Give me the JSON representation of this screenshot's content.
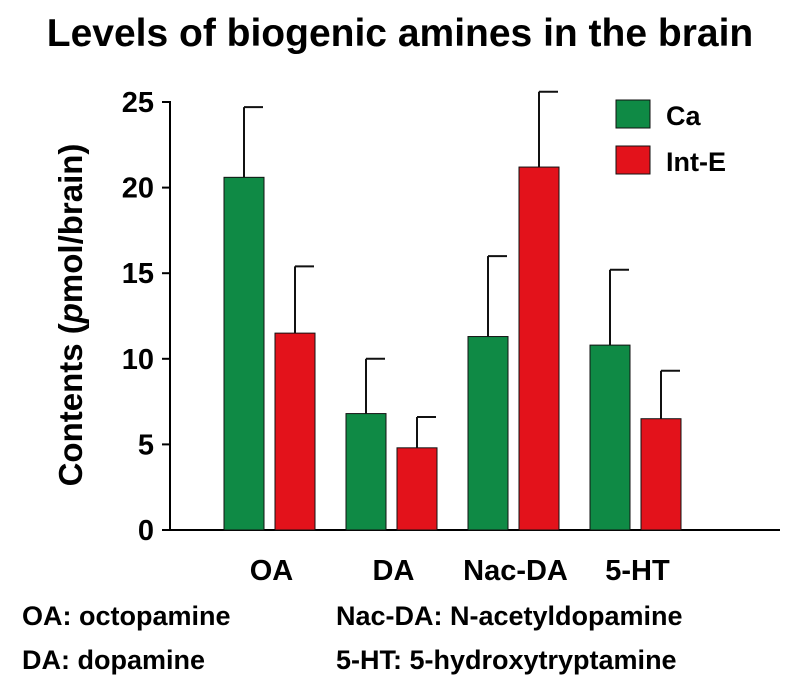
{
  "chart_data": {
    "type": "bar",
    "title": "Levels of biogenic amines in the brain",
    "ylabel_parts": [
      "Contents (",
      "p",
      "mol/brain)"
    ],
    "xlabel": "",
    "categories": [
      "OA",
      "DA",
      "Nac-DA",
      "5-HT"
    ],
    "ylim": [
      0,
      25
    ],
    "yticks": [
      0,
      5,
      10,
      15,
      20,
      25
    ],
    "legend_position": "top-right",
    "series": [
      {
        "name": "Ca",
        "color": "#0f8a45",
        "values": [
          20.6,
          6.8,
          11.3,
          10.8
        ],
        "errors": [
          4.1,
          3.2,
          4.7,
          4.4
        ]
      },
      {
        "name": "Int-E",
        "color": "#e3121b",
        "values": [
          11.5,
          4.8,
          21.2,
          6.5
        ],
        "errors": [
          3.9,
          1.8,
          4.4,
          2.8
        ]
      }
    ]
  },
  "footnotes": {
    "oa": "OA: octopamine",
    "da": "DA: dopamine",
    "nacda": "Nac-DA: N-acetyldopamine",
    "ht": "5-HT: 5-hydroxytryptamine"
  }
}
